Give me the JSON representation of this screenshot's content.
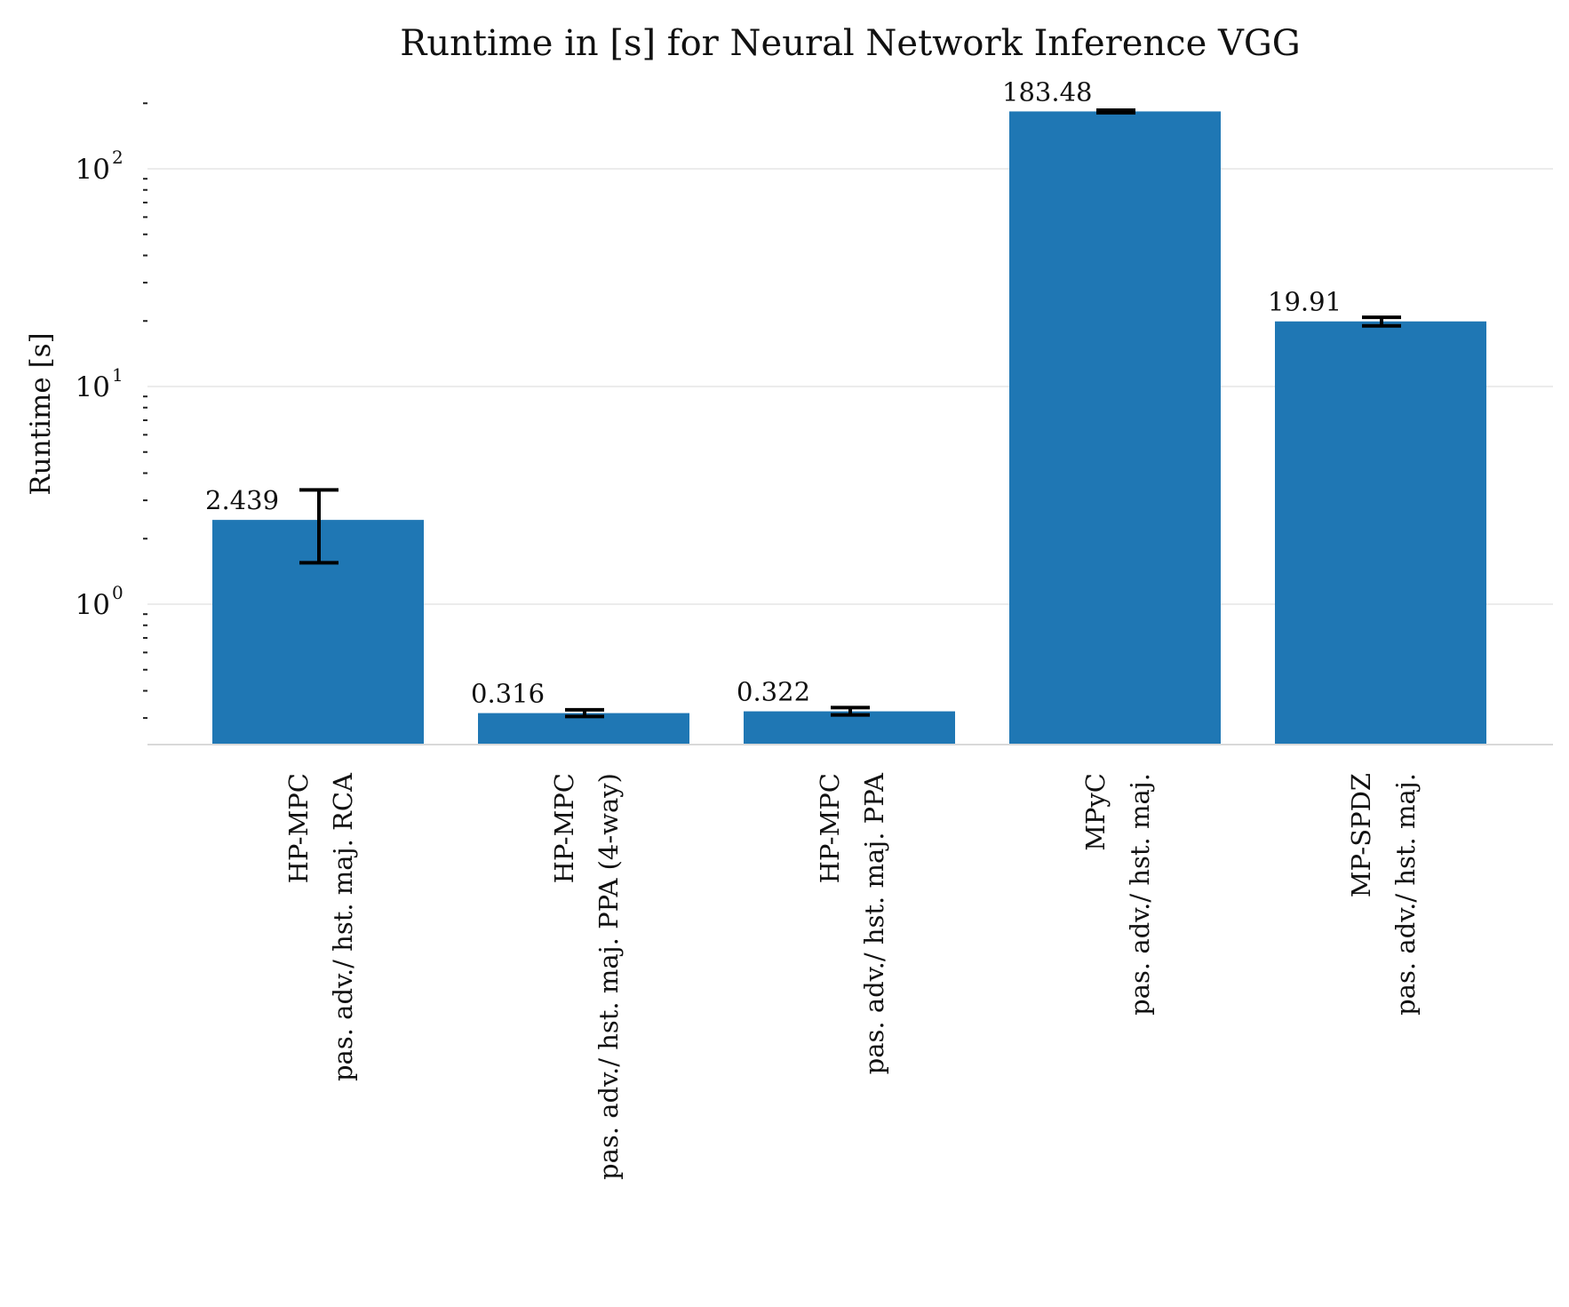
{
  "chart_data": {
    "type": "bar",
    "title": "Runtime in [s] for Neural Network Inference VGG",
    "xlabel": "",
    "ylabel": "Runtime [s]",
    "yscale": "log",
    "ylim": [
      0.25,
      220
    ],
    "grid": true,
    "legend": "none",
    "bar_color": "#1f77b4",
    "y_ticks": [
      {
        "base": "10",
        "exp": "0",
        "value": 1
      },
      {
        "base": "10",
        "exp": "1",
        "value": 10
      },
      {
        "base": "10",
        "exp": "2",
        "value": 100
      }
    ],
    "categories": [
      [
        "HP-MPC",
        "pas. adv./ hst. maj. RCA"
      ],
      [
        "HP-MPC",
        "pas. adv./ hst. maj. PPA (4-way)"
      ],
      [
        "HP-MPC",
        "pas. adv./ hst. maj. PPA"
      ],
      [
        "MPyC",
        "pas. adv./ hst. maj."
      ],
      [
        "MP-SPDZ",
        "pas. adv./ hst. maj."
      ]
    ],
    "values": [
      2.439,
      0.316,
      0.322,
      183.48,
      19.91
    ],
    "value_labels": [
      "2.439",
      "0.316",
      "0.322",
      "183.48",
      "19.91"
    ],
    "error_low": [
      1.55,
      0.305,
      0.31,
      181.0,
      19.0
    ],
    "error_high": [
      3.35,
      0.327,
      0.335,
      186.0,
      20.8
    ]
  }
}
